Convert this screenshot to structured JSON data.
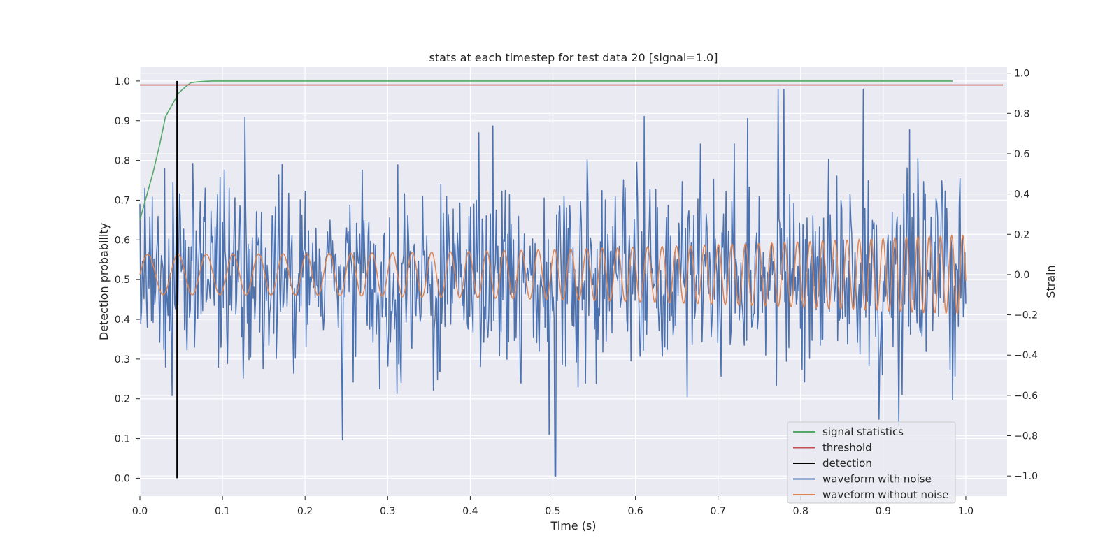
{
  "chart_data": {
    "type": "line",
    "title": "stats at each timestep for test data 20 [signal=1.0]",
    "xlabel": "Time (s)",
    "ylabel": "Detection probability",
    "y2label": "Strain",
    "xlim": [
      0.0,
      1.05
    ],
    "ylim": [
      -0.045,
      1.035
    ],
    "y2lim": [
      -1.1,
      1.03
    ],
    "xticks": [
      0.0,
      0.1,
      0.2,
      0.3,
      0.4,
      0.5,
      0.6,
      0.7,
      0.8,
      0.9,
      1.0
    ],
    "yticks": [
      0.0,
      0.1,
      0.2,
      0.3,
      0.4,
      0.5,
      0.6,
      0.7,
      0.8,
      0.9,
      1.0
    ],
    "y2ticks": [
      -1.0,
      -0.8,
      -0.6,
      -0.4,
      -0.2,
      0.0,
      0.2,
      0.4,
      0.6,
      0.8,
      1.0
    ],
    "grid": true,
    "legend_position": "lower-right",
    "background": "#eaeaf2",
    "series": [
      {
        "name": "signal statistics",
        "color": "#55a868",
        "axis": "left",
        "x": [
          0.0,
          0.008,
          0.016,
          0.024,
          0.031,
          0.039,
          0.047,
          0.055,
          0.062,
          0.07,
          0.078,
          0.086,
          0.094,
          0.2,
          0.4,
          0.6,
          0.8,
          0.984
        ],
        "y": [
          0.65,
          0.71,
          0.77,
          0.84,
          0.91,
          0.94,
          0.97,
          0.985,
          0.996,
          0.998,
          0.999,
          1.0,
          1.0,
          1.0,
          1.0,
          1.0,
          1.0,
          1.0
        ]
      },
      {
        "name": "threshold",
        "color": "#c44e52",
        "axis": "left",
        "x": [
          0.0,
          1.045
        ],
        "y": [
          0.99,
          0.99
        ]
      },
      {
        "name": "detection",
        "color": "#000000",
        "axis": "left",
        "x": [
          0.045,
          0.045
        ],
        "y": [
          0.0,
          1.0
        ]
      },
      {
        "name": "waveform with noise",
        "color": "#4c72b0",
        "axis": "right",
        "x_range": [
          0.0,
          1.0
        ],
        "point_count": 1000,
        "std_estimate": 0.25,
        "min": -1.0,
        "max": 0.92,
        "notable_points": [
          {
            "x": 0.245,
            "y": -0.82
          },
          {
            "x": 0.503,
            "y": -1.0
          },
          {
            "x": 0.773,
            "y": 0.92
          },
          {
            "x": 0.78,
            "y": 0.92
          },
          {
            "x": 0.932,
            "y": 0.72
          },
          {
            "x": 0.127,
            "y": 0.78
          }
        ]
      },
      {
        "name": "waveform without noise",
        "color": "#dd8452",
        "axis": "right",
        "x_range": [
          0.0,
          1.0
        ],
        "point_count": 1000,
        "amplitude_start": 0.1,
        "amplitude_end": 0.2,
        "frequency_start_hz": 26,
        "frequency_end_hz": 75
      }
    ],
    "legend": [
      "signal statistics",
      "threshold",
      "detection",
      "waveform with noise",
      "waveform without noise"
    ]
  }
}
